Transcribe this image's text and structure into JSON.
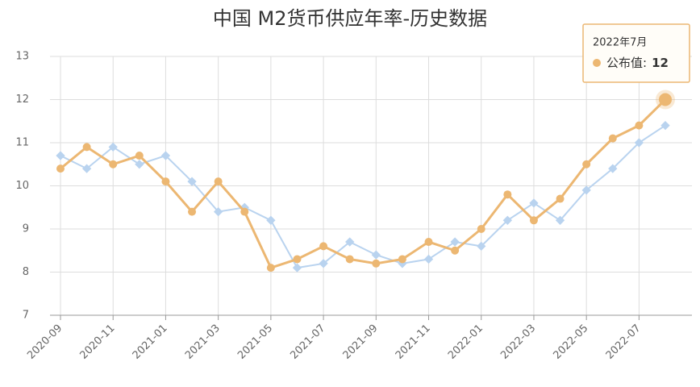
{
  "chart_data": {
    "type": "line",
    "title": "中国 M2货币供应年率-历史数据",
    "categories": [
      "2020-09",
      null,
      "2020-11",
      null,
      "2021-01",
      null,
      "2021-03",
      null,
      "2021-05",
      null,
      "2021-07",
      null,
      "2021-09",
      null,
      "2021-11",
      null,
      "2022-01",
      null,
      "2022-03",
      null,
      "2022-05",
      null,
      "2022-07",
      null
    ],
    "series": [
      {
        "name": "公布值",
        "color": "#ecb772",
        "values": [
          10.4,
          10.9,
          10.5,
          10.7,
          10.1,
          9.4,
          10.1,
          9.4,
          8.1,
          8.3,
          8.6,
          8.3,
          8.2,
          8.3,
          8.7,
          8.5,
          9.0,
          9.8,
          9.2,
          9.7,
          10.5,
          11.1,
          11.4,
          12
        ]
      },
      {
        "color": "#b9d3ef",
        "values": [
          10.7,
          10.4,
          10.9,
          10.5,
          10.7,
          10.1,
          9.4,
          9.5,
          9.2,
          8.1,
          8.2,
          8.7,
          8.4,
          8.2,
          8.3,
          8.7,
          8.6,
          9.2,
          9.6,
          9.2,
          9.9,
          10.4,
          11.0,
          11.4
        ]
      }
    ],
    "ylim": [
      7,
      13
    ],
    "yticks": [
      7,
      8,
      9,
      10,
      11,
      12,
      13
    ],
    "grid": true,
    "tooltip": {
      "title": "2022年7月",
      "separator": ":"
    }
  }
}
